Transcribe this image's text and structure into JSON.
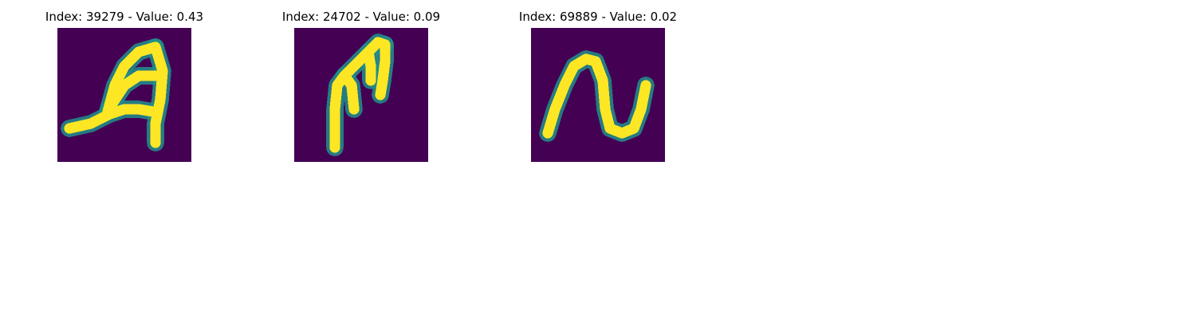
{
  "chart_data": [
    {
      "type": "heatmap",
      "title": "Index: 39279 - Value: 0.43",
      "colormap": {
        "low": "#440154",
        "mid": "#21918c",
        "high": "#fde725"
      }
    },
    {
      "type": "heatmap",
      "title": "Index: 24702 - Value: 0.09",
      "colormap": {
        "low": "#440154",
        "mid": "#21918c",
        "high": "#fde725"
      }
    },
    {
      "type": "heatmap",
      "title": "Index: 69889 - Value: 0.02",
      "colormap": {
        "low": "#440154",
        "mid": "#21918c",
        "high": "#fde725"
      }
    }
  ]
}
